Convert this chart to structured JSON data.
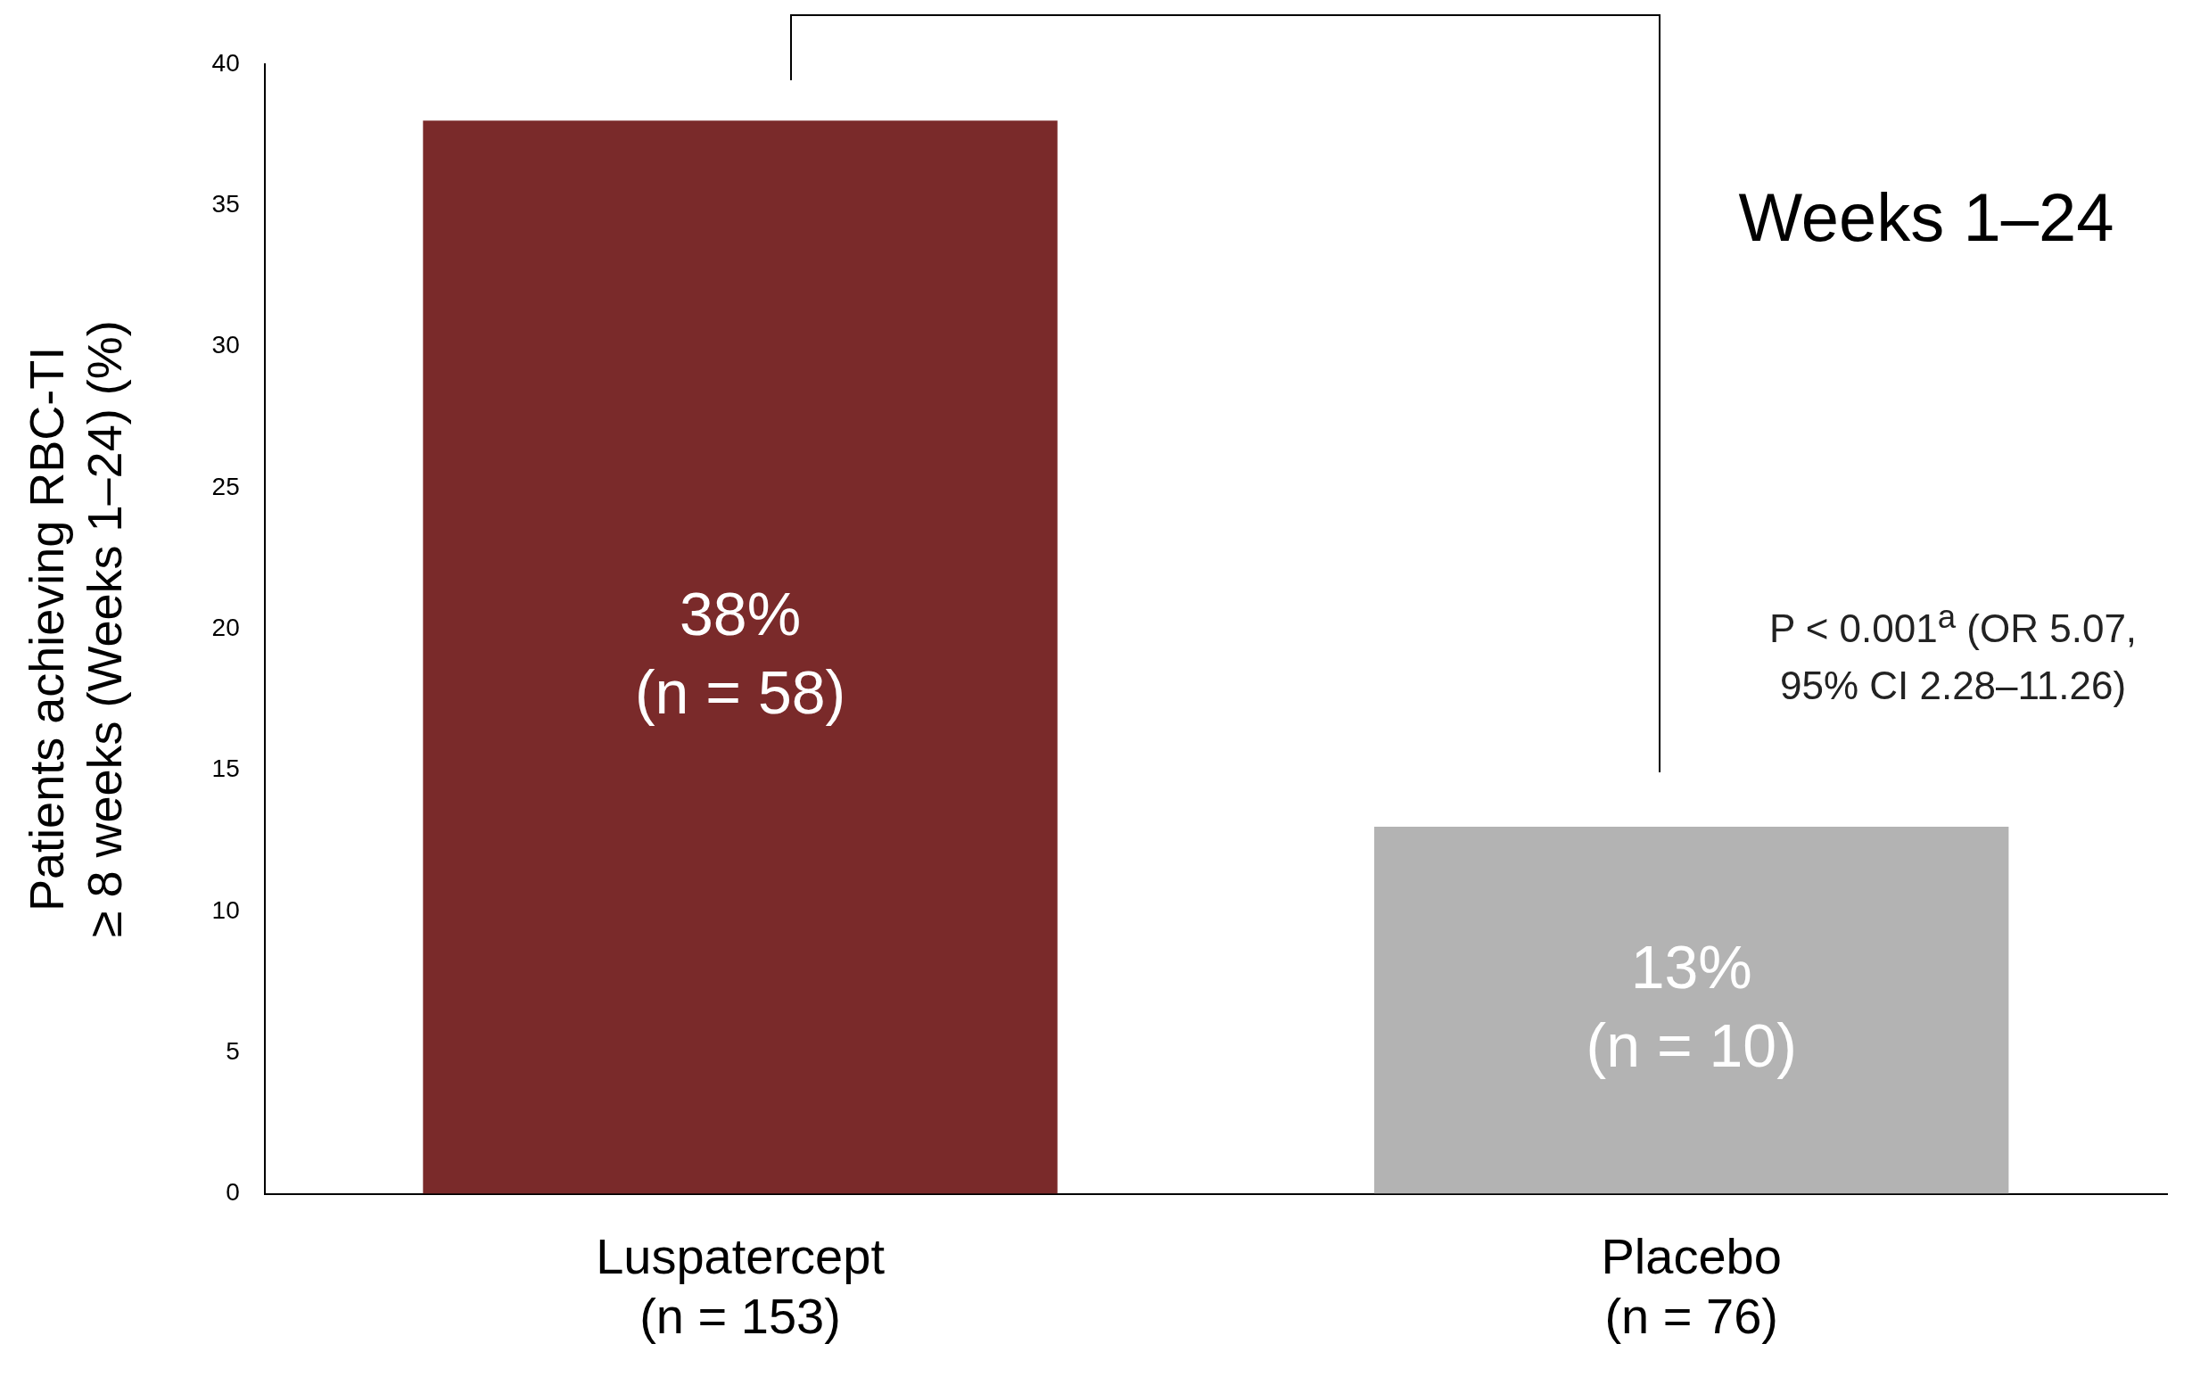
{
  "chart_data": {
    "type": "bar",
    "ylabel": "Patients achieving RBC-TI\n≥ 8 weeks (Weeks 1–24) (%)",
    "categories": [
      "Luspatercept\n(n = 153)",
      "Placebo\n(n = 76)"
    ],
    "values": [
      38,
      13
    ],
    "colors": [
      "#7a2a2a",
      "#b3b3b3"
    ],
    "value_labels": [
      "38%\n(n = 58)",
      "13%\n(n = 10)"
    ],
    "ylim": [
      0,
      40
    ],
    "yticks": [
      0,
      5,
      10,
      15,
      20,
      25,
      30,
      35,
      40
    ],
    "grid": false,
    "legend": false,
    "annotations": [
      "Weeks 1–24",
      "P < 0.001$^{a}$ (OR 5.07, 95% CI 2.28–11.26)"
    ]
  }
}
